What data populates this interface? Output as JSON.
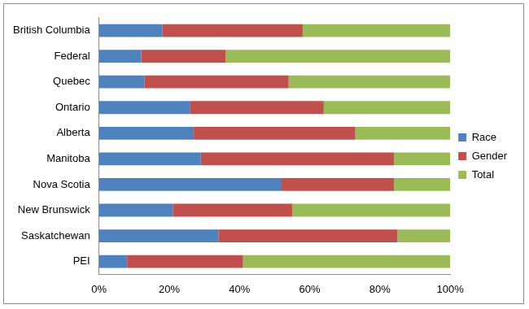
{
  "chart_data": {
    "type": "bar",
    "orientation": "horizontal",
    "stacked": true,
    "grid": false,
    "legend": "right",
    "categories": [
      "British Columbia",
      "Federal",
      "Quebec",
      "Ontario",
      "Alberta",
      "Manitoba",
      "Nova Scotia",
      "New Brunswick",
      "Saskatchewan",
      "PEI"
    ],
    "series": [
      {
        "name": "Race",
        "color": "#4f81bd",
        "values": [
          18,
          12,
          13,
          26,
          27,
          29,
          52,
          21,
          34,
          8
        ]
      },
      {
        "name": "Gender",
        "color": "#c0504d",
        "values": [
          40,
          24,
          41,
          38,
          46,
          55,
          32,
          34,
          51,
          33
        ]
      },
      {
        "name": "Total",
        "color": "#9bbb59",
        "values": [
          42,
          64,
          46,
          36,
          27,
          16,
          16,
          45,
          15,
          59
        ]
      }
    ],
    "xlim": [
      0,
      100
    ],
    "xticks": [
      {
        "value": 0,
        "label": "0%"
      },
      {
        "value": 20,
        "label": "20%"
      },
      {
        "value": 40,
        "label": "40%"
      },
      {
        "value": 60,
        "label": "60%"
      },
      {
        "value": 80,
        "label": "80%"
      },
      {
        "value": 100,
        "label": "100%"
      }
    ]
  }
}
